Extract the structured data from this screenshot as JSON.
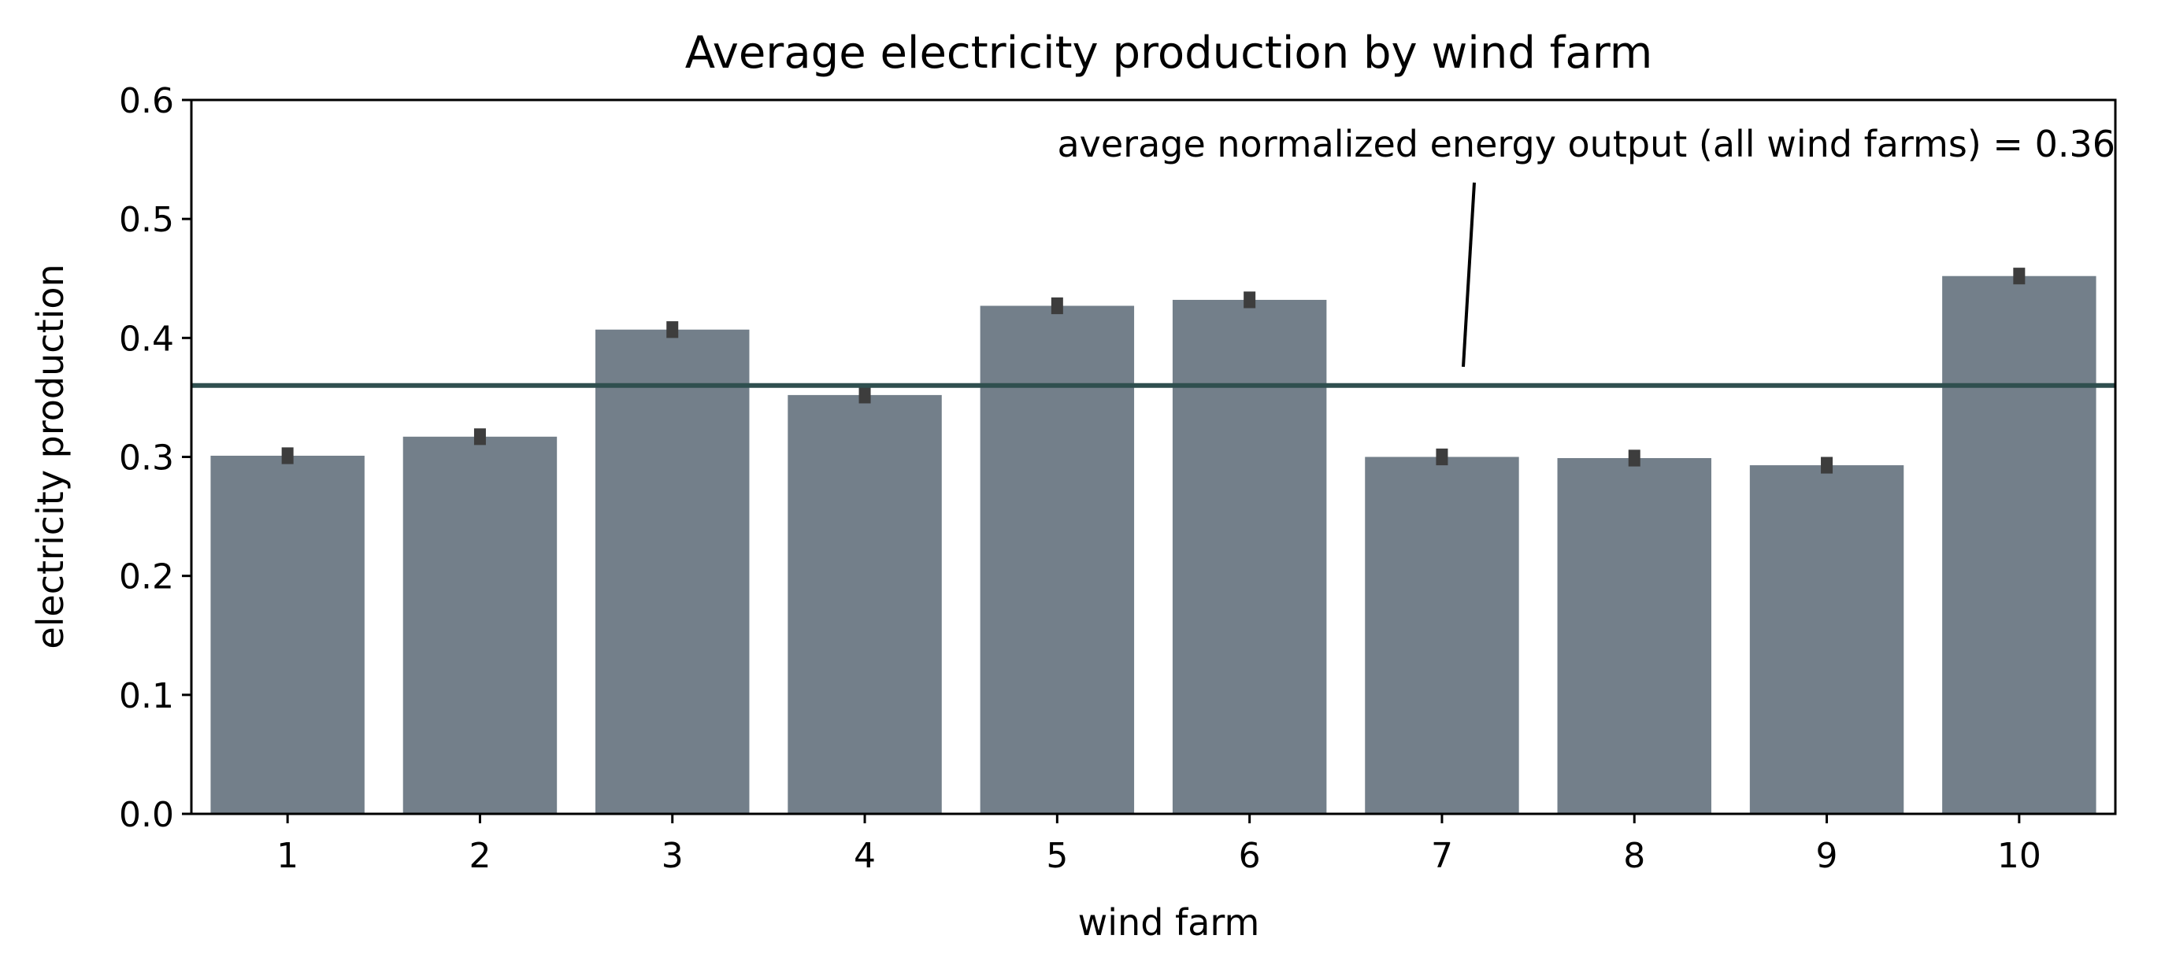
{
  "chart_data": {
    "type": "bar",
    "title": "Average electricity production by wind farm",
    "xlabel": "wind farm",
    "ylabel": "electricity production",
    "categories": [
      "1",
      "2",
      "3",
      "4",
      "5",
      "6",
      "7",
      "8",
      "9",
      "10"
    ],
    "values": [
      0.301,
      0.317,
      0.407,
      0.352,
      0.427,
      0.432,
      0.3,
      0.299,
      0.293,
      0.452
    ],
    "error_bars": [
      [
        0.294,
        0.308
      ],
      [
        0.31,
        0.324
      ],
      [
        0.4,
        0.414
      ],
      [
        0.345,
        0.359
      ],
      [
        0.42,
        0.434
      ],
      [
        0.425,
        0.439
      ],
      [
        0.293,
        0.307
      ],
      [
        0.292,
        0.306
      ],
      [
        0.286,
        0.3
      ],
      [
        0.445,
        0.459
      ]
    ],
    "ylim": [
      0,
      0.6
    ],
    "yticks": [
      "0.0",
      "0.1",
      "0.2",
      "0.3",
      "0.4",
      "0.5",
      "0.6"
    ],
    "reference_line": 0.36,
    "annotation": "average normalized energy output (all wind farms) = 0.36",
    "colors": {
      "bar": "#737f8a",
      "error_bar": "#3d3d3d",
      "reference_line": "#2f4f4f",
      "axis": "#000000"
    },
    "grid": false,
    "legend": "none"
  }
}
